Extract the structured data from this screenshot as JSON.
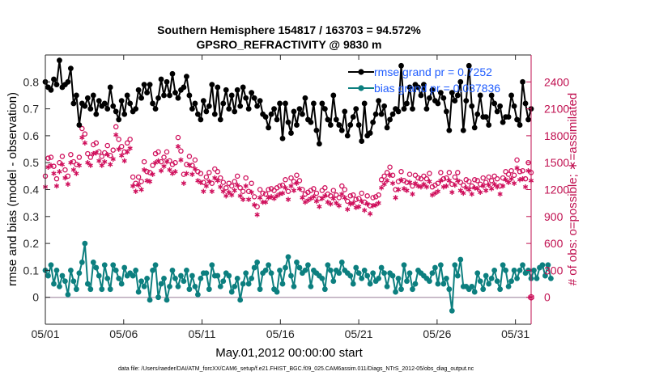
{
  "chart_data": {
    "type": "line",
    "title_line1": "Southern Hemisphere 154817 / 163703 = 94.572%",
    "title_line2": "GPSRO_REFRACTIVITY @ 9830 m",
    "xlabel": "May.01,2012 00:00:00 start",
    "ylabel_left": "rmse and bias (model - observation)",
    "ylabel_right": "# of obs: o=possible; ∗=assimilated",
    "footer": "data file: /Users/raeder/DAI/ATM_forcXX/CAM6_setup/f.e21.FHIST_BGC.f09_025.CAM6assim.011/Diags_NTrS_2012-05/obs_diag_output.nc",
    "x_ticks": [
      "05/01",
      "05/06",
      "05/11",
      "05/16",
      "05/21",
      "05/26",
      "05/31"
    ],
    "x_tick_days": [
      1,
      6,
      11,
      16,
      21,
      26,
      31
    ],
    "xlim": [
      1,
      32
    ],
    "y_left_ticks": [
      "0",
      "0.1",
      "0.2",
      "0.3",
      "0.4",
      "0.5",
      "0.6",
      "0.7",
      "0.8"
    ],
    "ylim_left": [
      -0.1,
      0.9
    ],
    "y_right_ticks": [
      "0",
      "300",
      "600",
      "900",
      "1200",
      "1500",
      "1800",
      "2100",
      "2400"
    ],
    "ylim_right": [
      -300,
      2700
    ],
    "legend": {
      "placement": "top-right",
      "rmse_label": "rmse grand pr = 0.7252",
      "bias_label": "bias grand pr = 0.037836"
    },
    "colors": {
      "rmse": "#000000",
      "bias": "#0c7f7f",
      "obs": "#d0115d",
      "zero": "#b8a7b8",
      "legend_text": "#1f5cff"
    },
    "rmse": [
      0.8,
      0.78,
      0.77,
      0.81,
      0.79,
      0.88,
      0.78,
      0.79,
      0.8,
      0.85,
      0.72,
      0.75,
      0.64,
      0.72,
      0.71,
      0.74,
      0.7,
      0.75,
      0.68,
      0.73,
      0.71,
      0.72,
      0.7,
      0.78,
      0.71,
      0.69,
      0.66,
      0.73,
      0.68,
      0.75,
      0.72,
      0.69,
      0.7,
      0.77,
      0.74,
      0.79,
      0.76,
      0.79,
      0.72,
      0.7,
      0.74,
      0.81,
      0.75,
      0.8,
      0.75,
      0.83,
      0.76,
      0.74,
      0.77,
      0.78,
      0.82,
      0.75,
      0.7,
      0.72,
      0.68,
      0.66,
      0.73,
      0.69,
      0.71,
      0.79,
      0.68,
      0.78,
      0.66,
      0.72,
      0.77,
      0.7,
      0.75,
      0.69,
      0.77,
      0.71,
      0.78,
      0.74,
      0.7,
      0.76,
      0.74,
      0.71,
      0.73,
      0.68,
      0.67,
      0.63,
      0.68,
      0.7,
      0.66,
      0.72,
      0.59,
      0.72,
      0.65,
      0.61,
      0.69,
      0.64,
      0.7,
      0.68,
      0.74,
      0.66,
      0.65,
      0.72,
      0.62,
      0.57,
      0.72,
      0.7,
      0.66,
      0.64,
      0.75,
      0.66,
      0.64,
      0.62,
      0.69,
      0.6,
      0.64,
      0.67,
      0.7,
      0.64,
      0.58,
      0.72,
      0.6,
      0.61,
      0.65,
      0.68,
      0.73,
      0.68,
      0.71,
      0.63,
      0.66,
      0.68,
      0.7,
      0.69,
      0.86,
      0.7,
      0.72,
      0.78,
      0.7,
      0.79,
      0.78,
      0.75,
      0.79,
      0.7,
      0.74,
      0.77,
      0.73,
      0.72,
      0.76,
      0.74,
      0.69,
      0.62,
      0.76,
      0.73,
      0.75,
      0.8,
      0.62,
      0.73,
      0.86,
      0.71,
      0.63,
      0.68,
      0.75,
      0.67,
      0.67,
      0.64,
      0.75,
      0.72,
      0.69,
      0.71,
      0.65,
      0.67,
      0.67,
      0.75,
      0.71,
      0.66,
      0.64,
      0.8,
      0.72,
      0.66,
      0.7
    ],
    "bias": [
      0.1,
      0.08,
      0.12,
      0.05,
      0.1,
      0.04,
      0.08,
      0.06,
      0.01,
      0.1,
      0.06,
      0.03,
      0.09,
      0.13,
      0.2,
      0.05,
      0.03,
      0.13,
      0.11,
      0.08,
      0.03,
      0.12,
      0.07,
      0.03,
      0.12,
      0.1,
      0.07,
      0.05,
      0.11,
      0.08,
      0.09,
      0.08,
      0.1,
      0.02,
      0.06,
      0.04,
      0.07,
      -0.01,
      0.1,
      0.12,
      0.0,
      0.05,
      0.07,
      -0.01,
      0.04,
      0.1,
      0.07,
      0.04,
      0.08,
      0.06,
      0.1,
      0.03,
      0.08,
      0.04,
      0.01,
      0.07,
      0.09,
      0.09,
      0.03,
      0.12,
      0.08,
      0.08,
      0.04,
      0.06,
      0.09,
      0.08,
      0.02,
      0.04,
      0.07,
      -0.01,
      0.05,
      0.09,
      0.05,
      0.07,
      0.11,
      0.13,
      0.03,
      0.09,
      0.1,
      0.12,
      0.09,
      0.03,
      0.02,
      0.1,
      0.05,
      0.11,
      0.15,
      0.08,
      0.04,
      0.13,
      0.11,
      0.09,
      0.1,
      0.12,
      0.04,
      0.1,
      0.09,
      0.08,
      0.07,
      0.03,
      0.12,
      0.1,
      0.06,
      0.1,
      0.09,
      0.13,
      0.1,
      0.09,
      0.08,
      0.05,
      0.11,
      0.09,
      0.07,
      0.1,
      0.08,
      0.05,
      0.09,
      0.06,
      0.07,
      0.11,
      0.09,
      0.04,
      0.09,
      0.08,
      0.02,
      0.07,
      0.03,
      0.12,
      0.06,
      0.09,
      0.03,
      0.05,
      0.1,
      0.09,
      0.08,
      0.07,
      0.06,
      0.09,
      0.11,
      0.05,
      0.12,
      0.05,
      0.07,
      0.03,
      -0.05,
      0.12,
      0.08,
      0.14,
      0.04,
      0.04,
      0.03,
      0.04,
      0.02,
      0.09,
      0.06,
      0.03,
      0.08,
      0.05,
      0.07,
      0.1,
      0.06,
      0.03,
      0.12,
      0.1,
      0.04,
      0.06,
      0.1,
      0.07,
      0.1,
      0.12,
      0.09,
      0.1,
      0.07,
      0.1,
      0.07,
      0.11,
      0.12,
      0.08,
      0.12,
      0.07
    ],
    "obs_possible": [
      1350,
      1550,
      1560,
      1460,
      1320,
      1500,
      1570,
      1420,
      1350,
      1590,
      1510,
      1480,
      1560,
      1880,
      1820,
      1600,
      1560,
      1700,
      1720,
      1620,
      1570,
      1610,
      1690,
      1580,
      1640,
      1900,
      1760,
      1680,
      1620,
      1720,
      1760,
      1340,
      1270,
      1340,
      1290,
      1510,
      1400,
      1390,
      1470,
      1600,
      1620,
      1510,
      1560,
      1620,
      1520,
      1480,
      1500,
      1780,
      1630,
      1370,
      1480,
      1570,
      1470,
      1530,
      1400,
      1380,
      1280,
      1340,
      1390,
      1270,
      1430,
      1400,
      1330,
      1280,
      1220,
      1270,
      1240,
      1290,
      1350,
      1220,
      1180,
      1330,
      1180,
      1270,
      1120,
      1010,
      1200,
      1160,
      1150,
      1200,
      1210,
      1190,
      1220,
      1240,
      1250,
      1310,
      1180,
      1330,
      1290,
      1360,
      1300,
      1200,
      1150,
      1170,
      1190,
      1210,
      1160,
      1100,
      1190,
      1220,
      1150,
      1130,
      1190,
      1140,
      1110,
      1240,
      1200,
      1070,
      1130,
      1140,
      1090,
      1100,
      1160,
      1060,
      1130,
      1020,
      1110,
      1120,
      1140,
      1310,
      1350,
      1390,
      1450,
      1360,
      1200,
      1290,
      1400,
      1300,
      1280,
      1370,
      1240,
      1360,
      1330,
      1320,
      1350,
      1320,
      1380,
      1230,
      1250,
      1270,
      1390,
      1320,
      1330,
      1390,
      1260,
      1340,
      1390,
      1280,
      1250,
      1310,
      1290,
      1240,
      1310,
      1300,
      1260,
      1330,
      1280,
      1340,
      1300,
      1350,
      1320,
      1240,
      1330,
      1400,
      1370,
      1410,
      1360,
      1530,
      1400,
      1410,
      1320,
      1500,
      1390
    ],
    "obs_assimilated": [
      1230,
      1450,
      1470,
      1380,
      1240,
      1400,
      1480,
      1330,
      1260,
      1500,
      1420,
      1380,
      1470,
      1780,
      1720,
      1500,
      1470,
      1600,
      1610,
      1520,
      1470,
      1510,
      1590,
      1480,
      1540,
      1810,
      1650,
      1580,
      1520,
      1620,
      1660,
      1240,
      1180,
      1250,
      1200,
      1420,
      1300,
      1290,
      1370,
      1500,
      1520,
      1410,
      1460,
      1510,
      1420,
      1380,
      1400,
      1680,
      1530,
      1270,
      1380,
      1470,
      1370,
      1430,
      1300,
      1280,
      1180,
      1240,
      1290,
      1180,
      1330,
      1300,
      1230,
      1180,
      1130,
      1170,
      1140,
      1190,
      1250,
      1130,
      1090,
      1240,
      1090,
      1170,
      1030,
      920,
      1110,
      1060,
      1060,
      1110,
      1120,
      1100,
      1130,
      1150,
      1160,
      1220,
      1090,
      1240,
      1190,
      1270,
      1210,
      1110,
      1060,
      1080,
      1100,
      1120,
      1070,
      1010,
      1100,
      1130,
      1060,
      1040,
      1100,
      1050,
      1020,
      1150,
      1110,
      980,
      1040,
      1050,
      1000,
      1010,
      1070,
      970,
      1040,
      930,
      1020,
      1030,
      1050,
      1220,
      1260,
      1300,
      1360,
      1270,
      1110,
      1200,
      1310,
      1210,
      1190,
      1280,
      1150,
      1270,
      1240,
      1230,
      1260,
      1230,
      1290,
      1140,
      1160,
      1180,
      1300,
      1230,
      1240,
      1300,
      1170,
      1250,
      1300,
      1190,
      1160,
      1220,
      1200,
      1150,
      1220,
      1210,
      1170,
      1240,
      1190,
      1250,
      1210,
      1260,
      1230,
      1150,
      1240,
      1310,
      1280,
      1320,
      1270,
      1440,
      1310,
      1320,
      1230,
      1410,
      1300
    ]
  }
}
